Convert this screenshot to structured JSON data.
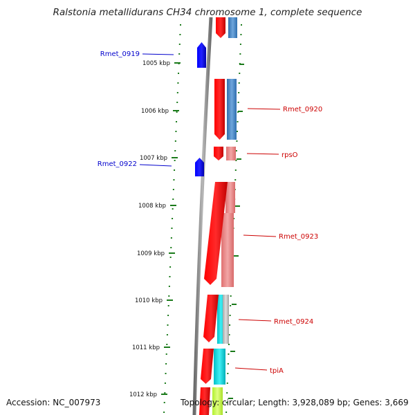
{
  "title": "Ralstonia metallidurans CH34 chromosome 1, complete sequence",
  "accession": "Accession: NC_007973",
  "summary": "Topology: circular; Length: 3,928,089 bp; Genes: 3,669",
  "colors": {
    "ruler_tick": "#1a7a1a",
    "backbone": "#8a8a8a",
    "reverse_gene": "#0000ff",
    "forward_gene": "#ff0000",
    "forward_label": "#cc0000",
    "reverse_label": "#0000cc",
    "cog_blue": "#3a7fbf",
    "cog_pink": "#e88080",
    "cog_cyan": "#00d8e0",
    "cog_gray": "#bcbcbc",
    "cog_lime": "#c8ff40"
  },
  "ruler": {
    "labels": [
      "1005 kbp",
      "1006 kbp",
      "1007 kbp",
      "1008 kbp",
      "1009 kbp",
      "1010 kbp",
      "1011 kbp",
      "1012 kbp"
    ]
  },
  "genes": [
    {
      "name": "Rmet_0919",
      "strand": "reverse"
    },
    {
      "name": "Rmet_0920",
      "strand": "forward"
    },
    {
      "name": "rpsO",
      "strand": "forward"
    },
    {
      "name": "Rmet_0922",
      "strand": "reverse"
    },
    {
      "name": "Rmet_0923",
      "strand": "forward"
    },
    {
      "name": "Rmet_0924",
      "strand": "forward"
    },
    {
      "name": "tpiA",
      "strand": "forward"
    }
  ]
}
